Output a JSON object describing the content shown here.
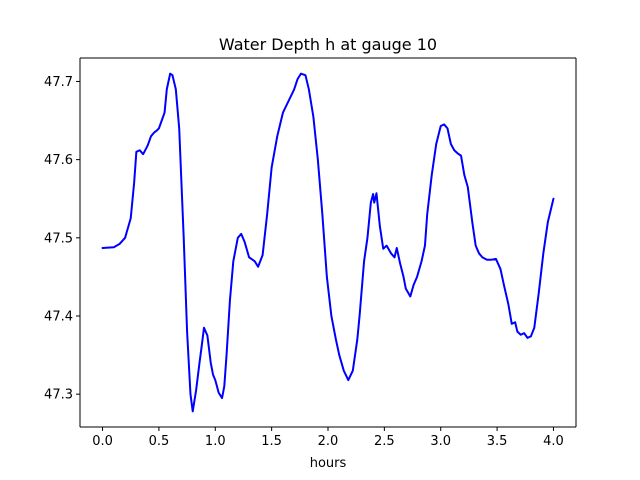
{
  "chart_data": {
    "type": "line",
    "title": "Water Depth h at gauge 10",
    "xlabel": "hours",
    "ylabel": "",
    "xlim": [
      -0.2,
      4.2
    ],
    "ylim": [
      47.258,
      47.73
    ],
    "xticks": [
      0.0,
      0.5,
      1.0,
      1.5,
      2.0,
      2.5,
      3.0,
      3.5,
      4.0
    ],
    "xtick_labels": [
      "0.0",
      "0.5",
      "1.0",
      "1.5",
      "2.0",
      "2.5",
      "3.0",
      "3.5",
      "4.0"
    ],
    "yticks": [
      47.3,
      47.4,
      47.5,
      47.6,
      47.7
    ],
    "ytick_labels": [
      "47.3",
      "47.4",
      "47.5",
      "47.6",
      "47.7"
    ],
    "grid": false,
    "series": [
      {
        "color": "#0000ff",
        "x": [
          0.0,
          0.1,
          0.15,
          0.2,
          0.25,
          0.28,
          0.3,
          0.33,
          0.36,
          0.4,
          0.43,
          0.46,
          0.48,
          0.5,
          0.52,
          0.55,
          0.57,
          0.6,
          0.62,
          0.65,
          0.68,
          0.72,
          0.75,
          0.78,
          0.8,
          0.83,
          0.86,
          0.88,
          0.9,
          0.93,
          0.96,
          0.98,
          1.0,
          1.03,
          1.06,
          1.08,
          1.1,
          1.13,
          1.16,
          1.2,
          1.23,
          1.26,
          1.3,
          1.35,
          1.38,
          1.42,
          1.46,
          1.5,
          1.55,
          1.6,
          1.65,
          1.7,
          1.73,
          1.76,
          1.8,
          1.83,
          1.87,
          1.91,
          1.95,
          1.99,
          2.03,
          2.07,
          2.1,
          2.14,
          2.18,
          2.22,
          2.26,
          2.28,
          2.32,
          2.35,
          2.38,
          2.4,
          2.41,
          2.43,
          2.46,
          2.49,
          2.52,
          2.56,
          2.59,
          2.61,
          2.64,
          2.67,
          2.69,
          2.71,
          2.73,
          2.76,
          2.79,
          2.83,
          2.86,
          2.88,
          2.92,
          2.96,
          3.0,
          3.03,
          3.06,
          3.09,
          3.12,
          3.15,
          3.18,
          3.21,
          3.24,
          3.28,
          3.31,
          3.34,
          3.37,
          3.41,
          3.45,
          3.49,
          3.53,
          3.56,
          3.6,
          3.63,
          3.66,
          3.68,
          3.71,
          3.74,
          3.77,
          3.8,
          3.83,
          3.87,
          3.91,
          3.95,
          4.0
        ],
        "y": [
          47.487,
          47.488,
          47.492,
          47.5,
          47.525,
          47.57,
          47.61,
          47.612,
          47.607,
          47.618,
          47.63,
          47.635,
          47.637,
          47.64,
          47.648,
          47.66,
          47.69,
          47.71,
          47.708,
          47.69,
          47.64,
          47.5,
          47.38,
          47.3,
          47.278,
          47.305,
          47.34,
          47.362,
          47.385,
          47.375,
          47.34,
          47.325,
          47.318,
          47.302,
          47.295,
          47.31,
          47.35,
          47.42,
          47.47,
          47.5,
          47.505,
          47.495,
          47.475,
          47.47,
          47.463,
          47.478,
          47.53,
          47.59,
          47.63,
          47.66,
          47.675,
          47.69,
          47.703,
          47.71,
          47.708,
          47.69,
          47.655,
          47.6,
          47.53,
          47.45,
          47.4,
          47.37,
          47.35,
          47.33,
          47.318,
          47.33,
          47.37,
          47.4,
          47.47,
          47.5,
          47.545,
          47.556,
          47.545,
          47.557,
          47.515,
          47.486,
          47.49,
          47.48,
          47.475,
          47.487,
          47.467,
          47.45,
          47.435,
          47.43,
          47.425,
          47.44,
          47.45,
          47.47,
          47.49,
          47.53,
          47.58,
          47.62,
          47.643,
          47.645,
          47.64,
          47.62,
          47.612,
          47.608,
          47.605,
          47.58,
          47.565,
          47.52,
          47.49,
          47.48,
          47.475,
          47.472,
          47.472,
          47.473,
          47.46,
          47.44,
          47.415,
          47.39,
          47.392,
          47.38,
          47.376,
          47.378,
          47.372,
          47.374,
          47.385,
          47.43,
          47.48,
          47.52,
          47.55
        ]
      }
    ]
  }
}
